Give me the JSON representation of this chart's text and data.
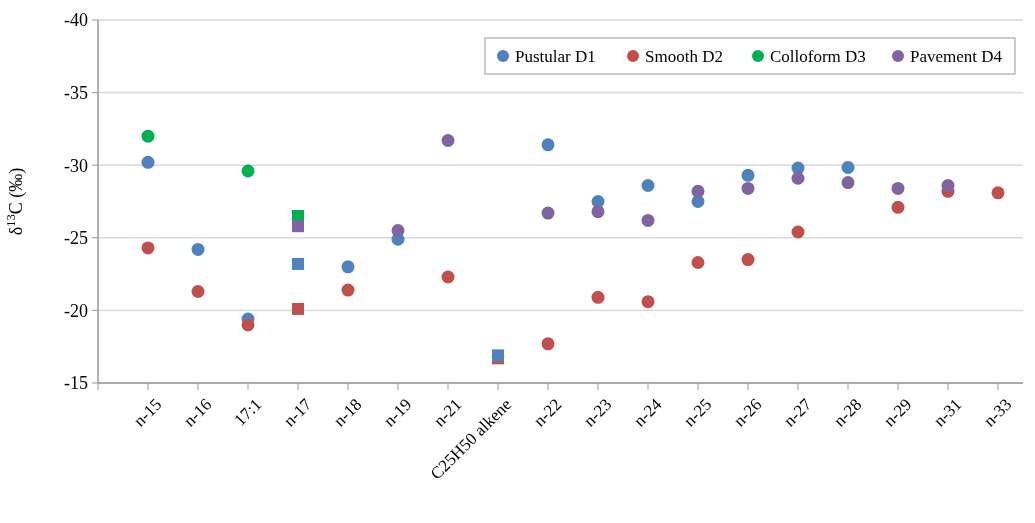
{
  "chart_data": {
    "type": "scatter",
    "ylabel": "δ$^{13}$C (‰)",
    "categories": [
      "n-15",
      "n-16",
      "17:1",
      "n-17",
      "n-18",
      "n-19",
      "n-21",
      "C25H50 alkene",
      "n-22",
      "n-23",
      "n-24",
      "n-25",
      "n-26",
      "n-27",
      "n-28",
      "n-29",
      "n-31",
      "n-33"
    ],
    "ylim": [
      -15,
      -40
    ],
    "yticks": [
      -15,
      -20,
      -25,
      -30,
      -35,
      -40
    ],
    "grid": "y",
    "legend": "top right",
    "marker": "circle",
    "series": [
      {
        "name": "Pustular D1",
        "color": "#4f81bd",
        "values": [
          -30.2,
          -24.2,
          -19.4,
          null,
          -23.0,
          -24.9,
          null,
          null,
          -31.4,
          -27.5,
          -28.6,
          -27.5,
          -29.3,
          -29.8,
          -29.85,
          null,
          null,
          null
        ]
      },
      {
        "name": "Smooth D2",
        "color": "#c0504d",
        "values": [
          -24.3,
          -21.3,
          -19.0,
          null,
          -21.4,
          null,
          -22.3,
          null,
          -17.7,
          -20.9,
          -20.6,
          -23.3,
          -23.5,
          -25.4,
          null,
          -27.1,
          -28.2,
          -28.1
        ]
      },
      {
        "name": "Colloform D3",
        "color": "#00b050",
        "values": [
          -32.0,
          null,
          -29.6,
          null,
          null,
          null,
          null,
          null,
          null,
          null,
          null,
          null,
          null,
          null,
          null,
          null,
          null,
          null
        ]
      },
      {
        "name": "Pavement D4",
        "color": "#8064a2",
        "values": [
          null,
          null,
          null,
          null,
          null,
          -25.5,
          -31.7,
          null,
          -26.7,
          -26.8,
          -26.2,
          -28.2,
          -28.4,
          -29.1,
          -28.8,
          -28.4,
          -28.6,
          null
        ]
      },
      {
        "color": "#00b050",
        "marker": "square",
        "x": [
          "n-17"
        ],
        "values": [
          -26.5
        ]
      },
      {
        "color": "#8064a2",
        "marker": "square",
        "x": [
          "n-17"
        ],
        "values": [
          -25.8
        ]
      },
      {
        "color": "#4f81bd",
        "marker": "square",
        "x": [
          "n-17"
        ],
        "values": [
          -23.2
        ]
      },
      {
        "color": "#c0504d",
        "marker": "square",
        "x": [
          "n-17"
        ],
        "values": [
          -20.1
        ]
      },
      {
        "color": "#c0504d",
        "marker": "square",
        "x": [
          "C25H50 alkene"
        ],
        "values": [
          -16.7
        ]
      },
      {
        "color": "#4f81bd",
        "marker": "square",
        "x": [
          "C25H50 alkene"
        ],
        "values": [
          -16.9
        ]
      }
    ]
  }
}
